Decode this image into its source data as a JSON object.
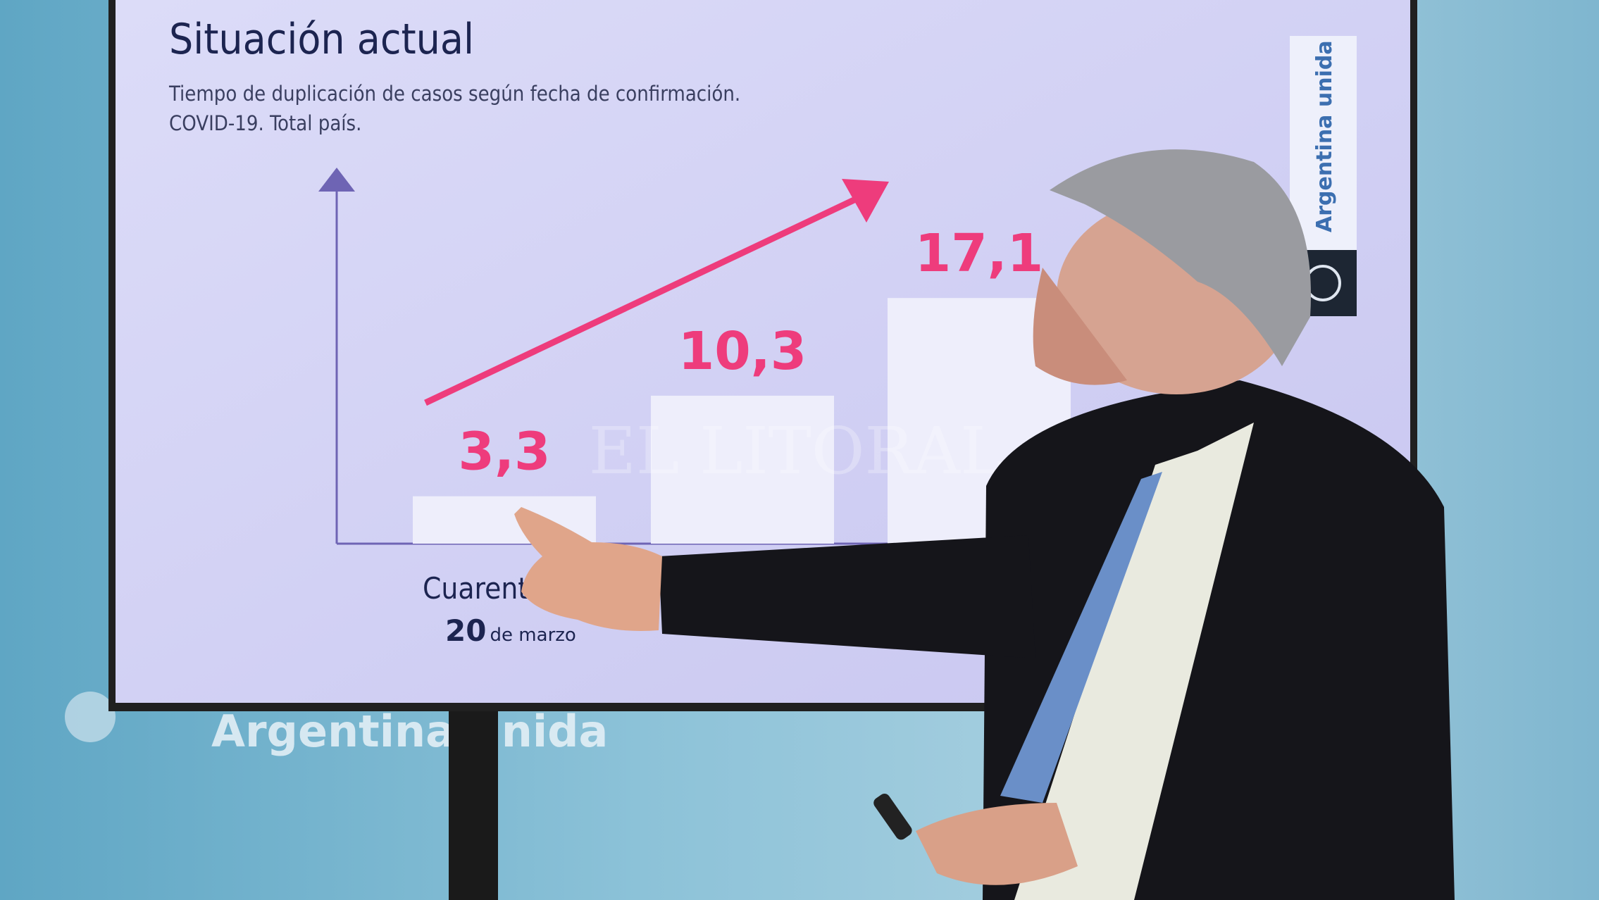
{
  "slide": {
    "title": "Situación actual",
    "subtitle_line1": "Tiempo de duplicación de casos según fecha de confirmación.",
    "subtitle_line2": "COVID-19. Total país.",
    "banner_text": "Argentina unida",
    "x_label_main": "Cuarentena",
    "x_label_day": "20",
    "x_label_month": "de marzo"
  },
  "backdrop": {
    "text": "Argentina unida"
  },
  "watermark": "EL LITORAL",
  "colors": {
    "accent_pink": "#ee3c7c",
    "axis_purple": "#6e64b4",
    "title_navy": "#1c2450",
    "screen_bg": "#d6d6f6"
  },
  "chart_data": {
    "type": "bar",
    "title": "Situación actual",
    "subtitle": "Tiempo de duplicación de casos según fecha de confirmación. COVID-19. Total país.",
    "categories": [
      "Cuarentena 20 de marzo",
      "",
      ""
    ],
    "values": [
      3.3,
      10.3,
      17.1
    ],
    "value_labels": [
      "3,3",
      "10,3",
      "17,1"
    ],
    "trend_arrow": "increasing",
    "ylim": [
      0,
      20
    ],
    "grid": false
  }
}
